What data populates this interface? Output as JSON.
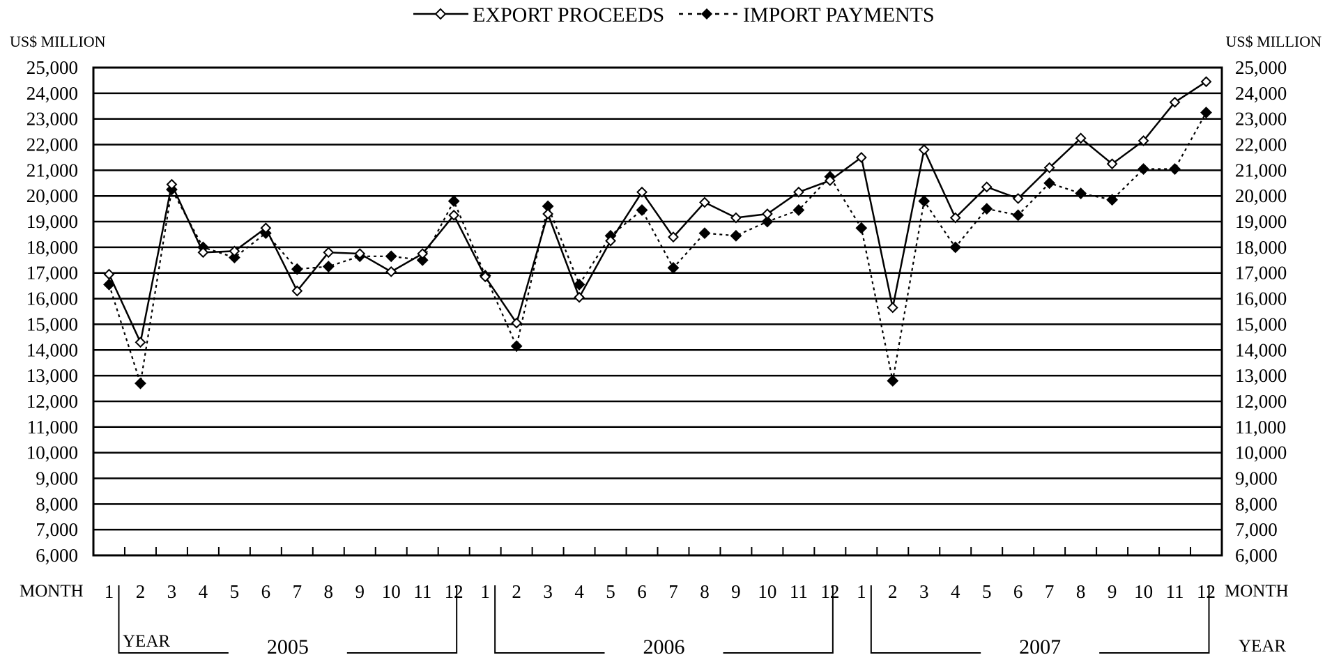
{
  "chart_data": {
    "type": "line",
    "title": "",
    "ylabel_left": "US$ MILLION",
    "ylabel_right": "US$ MILLION",
    "xlabel_left": "MONTH",
    "xlabel_right": "MONTH",
    "year_label_left": "YEAR",
    "year_label_right": "YEAR",
    "ylim": [
      6000,
      25000
    ],
    "y_ticks": [
      6000,
      7000,
      8000,
      9000,
      10000,
      11000,
      12000,
      13000,
      14000,
      15000,
      16000,
      17000,
      18000,
      19000,
      20000,
      21000,
      22000,
      23000,
      24000,
      25000
    ],
    "y_tick_labels": [
      "6,000",
      "7,000",
      "8,000",
      "9,000",
      "10,000",
      "11,000",
      "12,000",
      "13,000",
      "14,000",
      "15,000",
      "16,000",
      "17,000",
      "18,000",
      "19,000",
      "20,000",
      "21,000",
      "22,000",
      "23,000",
      "24,000",
      "25,000"
    ],
    "grid": true,
    "legend_position": "top-center",
    "years": [
      "2005",
      "2006",
      "2007"
    ],
    "months": [
      "1",
      "2",
      "3",
      "4",
      "5",
      "6",
      "7",
      "8",
      "9",
      "10",
      "11",
      "12"
    ],
    "series": [
      {
        "name": "EXPORT PROCEEDS",
        "line_style": "solid",
        "marker": "open-diamond",
        "color": "#000000",
        "values": [
          16950,
          14300,
          20450,
          17800,
          17850,
          18750,
          16300,
          17800,
          17750,
          17050,
          17750,
          19250,
          16850,
          15050,
          19300,
          16050,
          18250,
          20150,
          18400,
          19750,
          19150,
          19300,
          20150,
          20600,
          21500,
          15650,
          21800,
          19150,
          20350,
          19900,
          21100,
          22250,
          21250,
          22150,
          23650,
          24450
        ]
      },
      {
        "name": "IMPORT PAYMENTS",
        "line_style": "dotted",
        "marker": "filled-diamond",
        "color": "#000000",
        "values": [
          16550,
          12700,
          20250,
          18000,
          17600,
          18550,
          17150,
          17250,
          17650,
          17650,
          17500,
          19800,
          16900,
          14150,
          19600,
          16550,
          18450,
          19450,
          17200,
          18550,
          18450,
          19000,
          19450,
          20750,
          18750,
          12800,
          19800,
          18000,
          19500,
          19250,
          20500,
          20100,
          19850,
          21050,
          21050,
          23250
        ]
      }
    ]
  }
}
